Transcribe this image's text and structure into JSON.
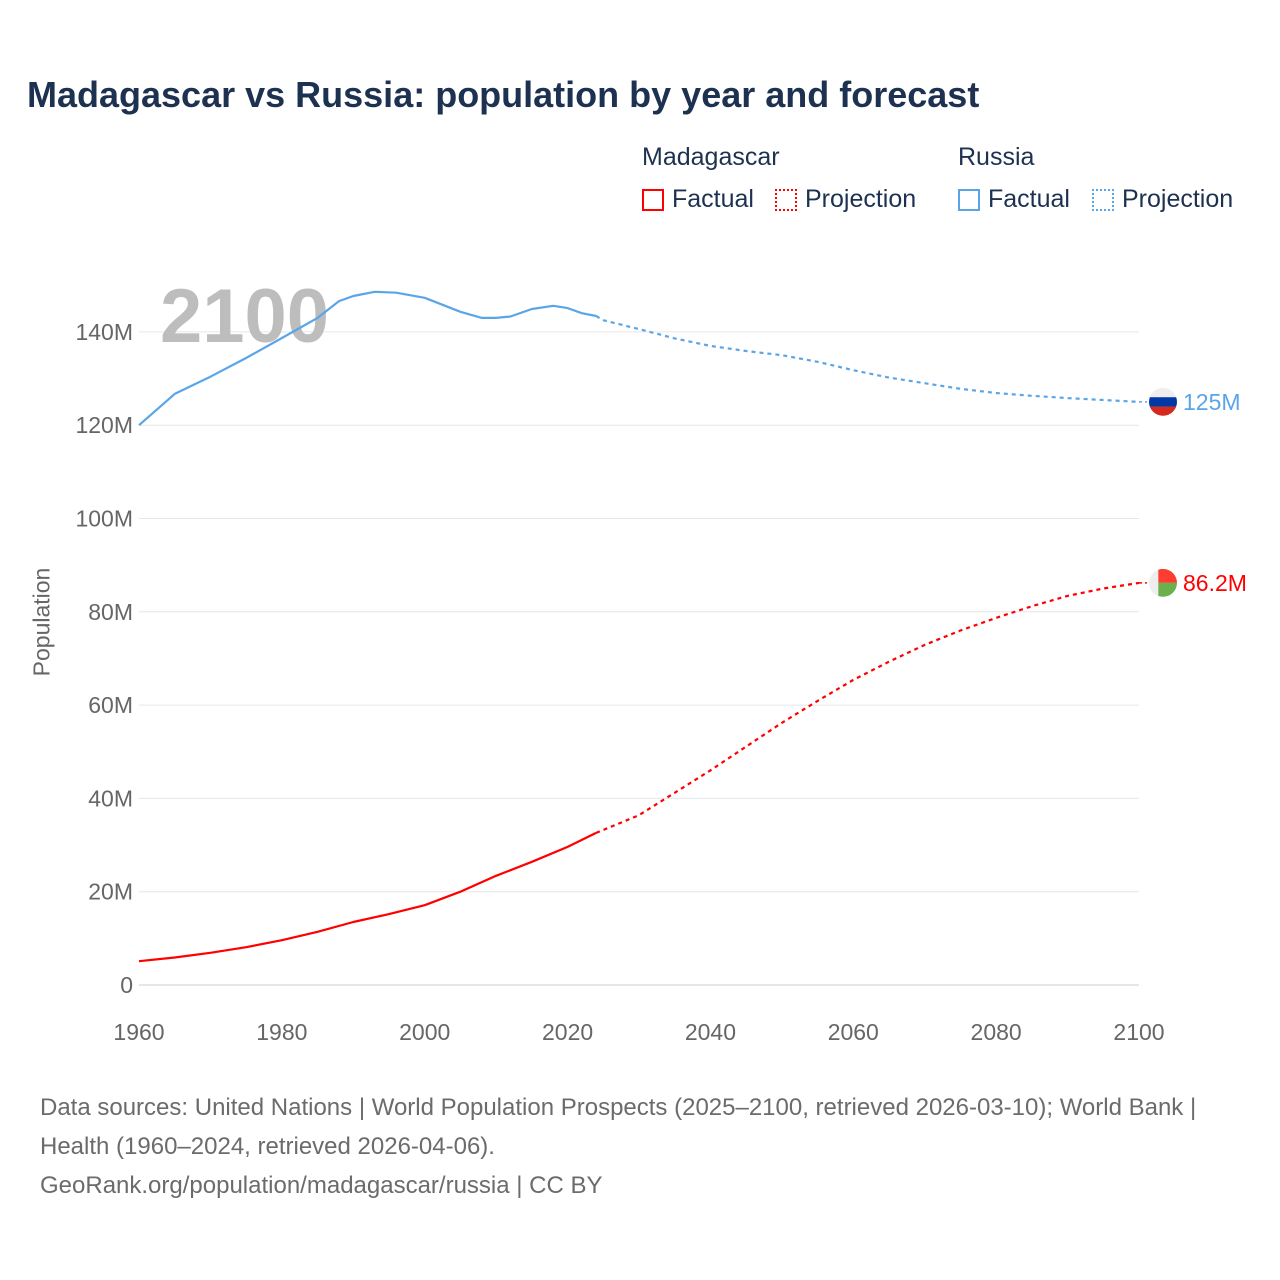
{
  "title": "Madagascar vs Russia: population by year and forecast",
  "legend": {
    "groups": [
      {
        "name": "Madagascar",
        "color": "#ff0000",
        "factual_label": "Factual",
        "projection_label": "Projection"
      },
      {
        "name": "Russia",
        "color": "#5aa5e8",
        "factual_label": "Factual",
        "projection_label": "Projection"
      }
    ]
  },
  "year_overlay": "2100",
  "chart_data": {
    "type": "line",
    "title": "Madagascar vs Russia: population by year and forecast",
    "xlabel": "",
    "ylabel": "Population",
    "xlim": [
      1960,
      2100
    ],
    "ylim": [
      0,
      150
    ],
    "x_ticks": [
      "1960",
      "1980",
      "2000",
      "2020",
      "2040",
      "2060",
      "2080",
      "2100"
    ],
    "y_ticks": [
      {
        "value": 0,
        "label": "0"
      },
      {
        "value": 20,
        "label": "20M"
      },
      {
        "value": 40,
        "label": "40M"
      },
      {
        "value": 60,
        "label": "60M"
      },
      {
        "value": 80,
        "label": "80M"
      },
      {
        "value": 100,
        "label": "100M"
      },
      {
        "value": 120,
        "label": "120M"
      },
      {
        "value": 140,
        "label": "140M"
      }
    ],
    "grid": true,
    "units": "millions",
    "series": [
      {
        "name": "Russia",
        "color": "#5aa5e8",
        "end_label": "125M",
        "factual": [
          [
            1960,
            120
          ],
          [
            1965,
            126.7
          ],
          [
            1970,
            130.4
          ],
          [
            1975,
            134.4
          ],
          [
            1980,
            138.7
          ],
          [
            1985,
            143
          ],
          [
            1988,
            146.6
          ],
          [
            1990,
            147.7
          ],
          [
            1993,
            148.6
          ],
          [
            1996,
            148.4
          ],
          [
            2000,
            147.3
          ],
          [
            2005,
            144.3
          ],
          [
            2008,
            143
          ],
          [
            2010,
            143
          ],
          [
            2012,
            143.3
          ],
          [
            2015,
            144.9
          ],
          [
            2018,
            145.6
          ],
          [
            2020,
            145.1
          ],
          [
            2022,
            144
          ],
          [
            2024,
            143.4
          ]
        ],
        "projection": [
          [
            2024,
            143.4
          ],
          [
            2025,
            142.5
          ],
          [
            2030,
            140.6
          ],
          [
            2035,
            138.6
          ],
          [
            2040,
            137
          ],
          [
            2045,
            135.9
          ],
          [
            2050,
            135
          ],
          [
            2055,
            133.6
          ],
          [
            2060,
            131.8
          ],
          [
            2065,
            130.2
          ],
          [
            2070,
            129
          ],
          [
            2075,
            127.8
          ],
          [
            2080,
            126.9
          ],
          [
            2085,
            126.3
          ],
          [
            2090,
            125.8
          ],
          [
            2095,
            125.4
          ],
          [
            2100,
            125
          ]
        ]
      },
      {
        "name": "Madagascar",
        "color": "#ff0000",
        "end_label": "86.2M",
        "factual": [
          [
            1960,
            5.1
          ],
          [
            1965,
            5.9
          ],
          [
            1970,
            6.9
          ],
          [
            1975,
            8.1
          ],
          [
            1980,
            9.6
          ],
          [
            1985,
            11.4
          ],
          [
            1990,
            13.5
          ],
          [
            1995,
            15.2
          ],
          [
            2000,
            17.1
          ],
          [
            2005,
            20
          ],
          [
            2010,
            23.4
          ],
          [
            2015,
            26.4
          ],
          [
            2020,
            29.6
          ],
          [
            2024,
            32.6
          ]
        ],
        "projection": [
          [
            2024,
            32.6
          ],
          [
            2030,
            36.4
          ],
          [
            2035,
            41.2
          ],
          [
            2040,
            46
          ],
          [
            2045,
            51.1
          ],
          [
            2050,
            56.2
          ],
          [
            2055,
            60.9
          ],
          [
            2060,
            65.4
          ],
          [
            2065,
            69.3
          ],
          [
            2070,
            72.9
          ],
          [
            2075,
            76
          ],
          [
            2080,
            78.7
          ],
          [
            2085,
            81.2
          ],
          [
            2090,
            83.4
          ],
          [
            2095,
            85
          ],
          [
            2100,
            86.2
          ]
        ]
      }
    ]
  },
  "footer": {
    "sources": "Data sources: United Nations | World Population Prospects (2025–2100, retrieved 2026-03-10); World Bank | Health (1960–2024, retrieved 2026-04-06).",
    "credit": "GeoRank.org/population/madagascar/russia | CC BY"
  }
}
